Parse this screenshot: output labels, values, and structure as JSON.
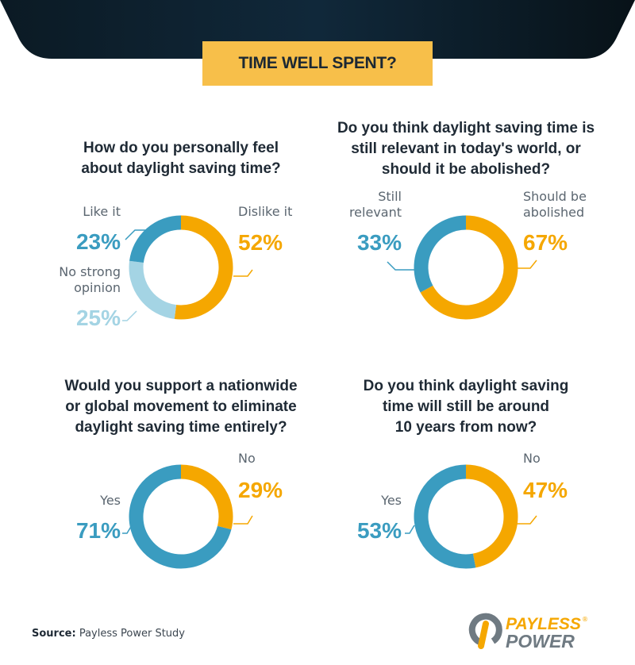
{
  "header": {
    "title": "TIME WELL SPENT?"
  },
  "colors": {
    "orange": "#f5a700",
    "blue": "#3a9cc0",
    "light_blue": "#a4d4e4",
    "title_box": "#f7bf4a",
    "header_dark": "#0c1a24"
  },
  "chart_data": [
    {
      "type": "pie",
      "style": "donut",
      "title_lines": [
        "How do you personally feel",
        "about daylight saving time?"
      ],
      "slices": [
        {
          "label": [
            "Dislike it"
          ],
          "value": 52,
          "display": "52%",
          "color": "#f5a700"
        },
        {
          "label": [
            "No strong",
            "opinion"
          ],
          "value": 25,
          "display": "25%",
          "color": "#a4d4e4"
        },
        {
          "label": [
            "Like it"
          ],
          "value": 23,
          "display": "23%",
          "color": "#3a9cc0"
        }
      ]
    },
    {
      "type": "pie",
      "style": "donut",
      "title_lines": [
        "Do you think daylight saving time is",
        "still relevant in today's world, or",
        "should it be abolished?"
      ],
      "slices": [
        {
          "label": [
            "Should be",
            "abolished"
          ],
          "value": 67,
          "display": "67%",
          "color": "#f5a700"
        },
        {
          "label": [
            "Still",
            "relevant"
          ],
          "value": 33,
          "display": "33%",
          "color": "#3a9cc0"
        }
      ]
    },
    {
      "type": "pie",
      "style": "donut",
      "title_lines": [
        "Would you support a nationwide",
        "or global movement to eliminate",
        "daylight saving time entirely?"
      ],
      "slices": [
        {
          "label": [
            "No"
          ],
          "value": 29,
          "display": "29%",
          "color": "#f5a700"
        },
        {
          "label": [
            "Yes"
          ],
          "value": 71,
          "display": "71%",
          "color": "#3a9cc0"
        }
      ]
    },
    {
      "type": "pie",
      "style": "donut",
      "title_lines": [
        "Do you think daylight saving",
        "time will still be around",
        "10 years from now?"
      ],
      "slices": [
        {
          "label": [
            "No"
          ],
          "value": 47,
          "display": "47%",
          "color": "#f5a700"
        },
        {
          "label": [
            "Yes"
          ],
          "value": 53,
          "display": "53%",
          "color": "#3a9cc0"
        }
      ]
    }
  ],
  "footer": {
    "source_label": "Source:",
    "source_text": " Payless Power Study",
    "logo_text": "PAYLESS POWER"
  }
}
